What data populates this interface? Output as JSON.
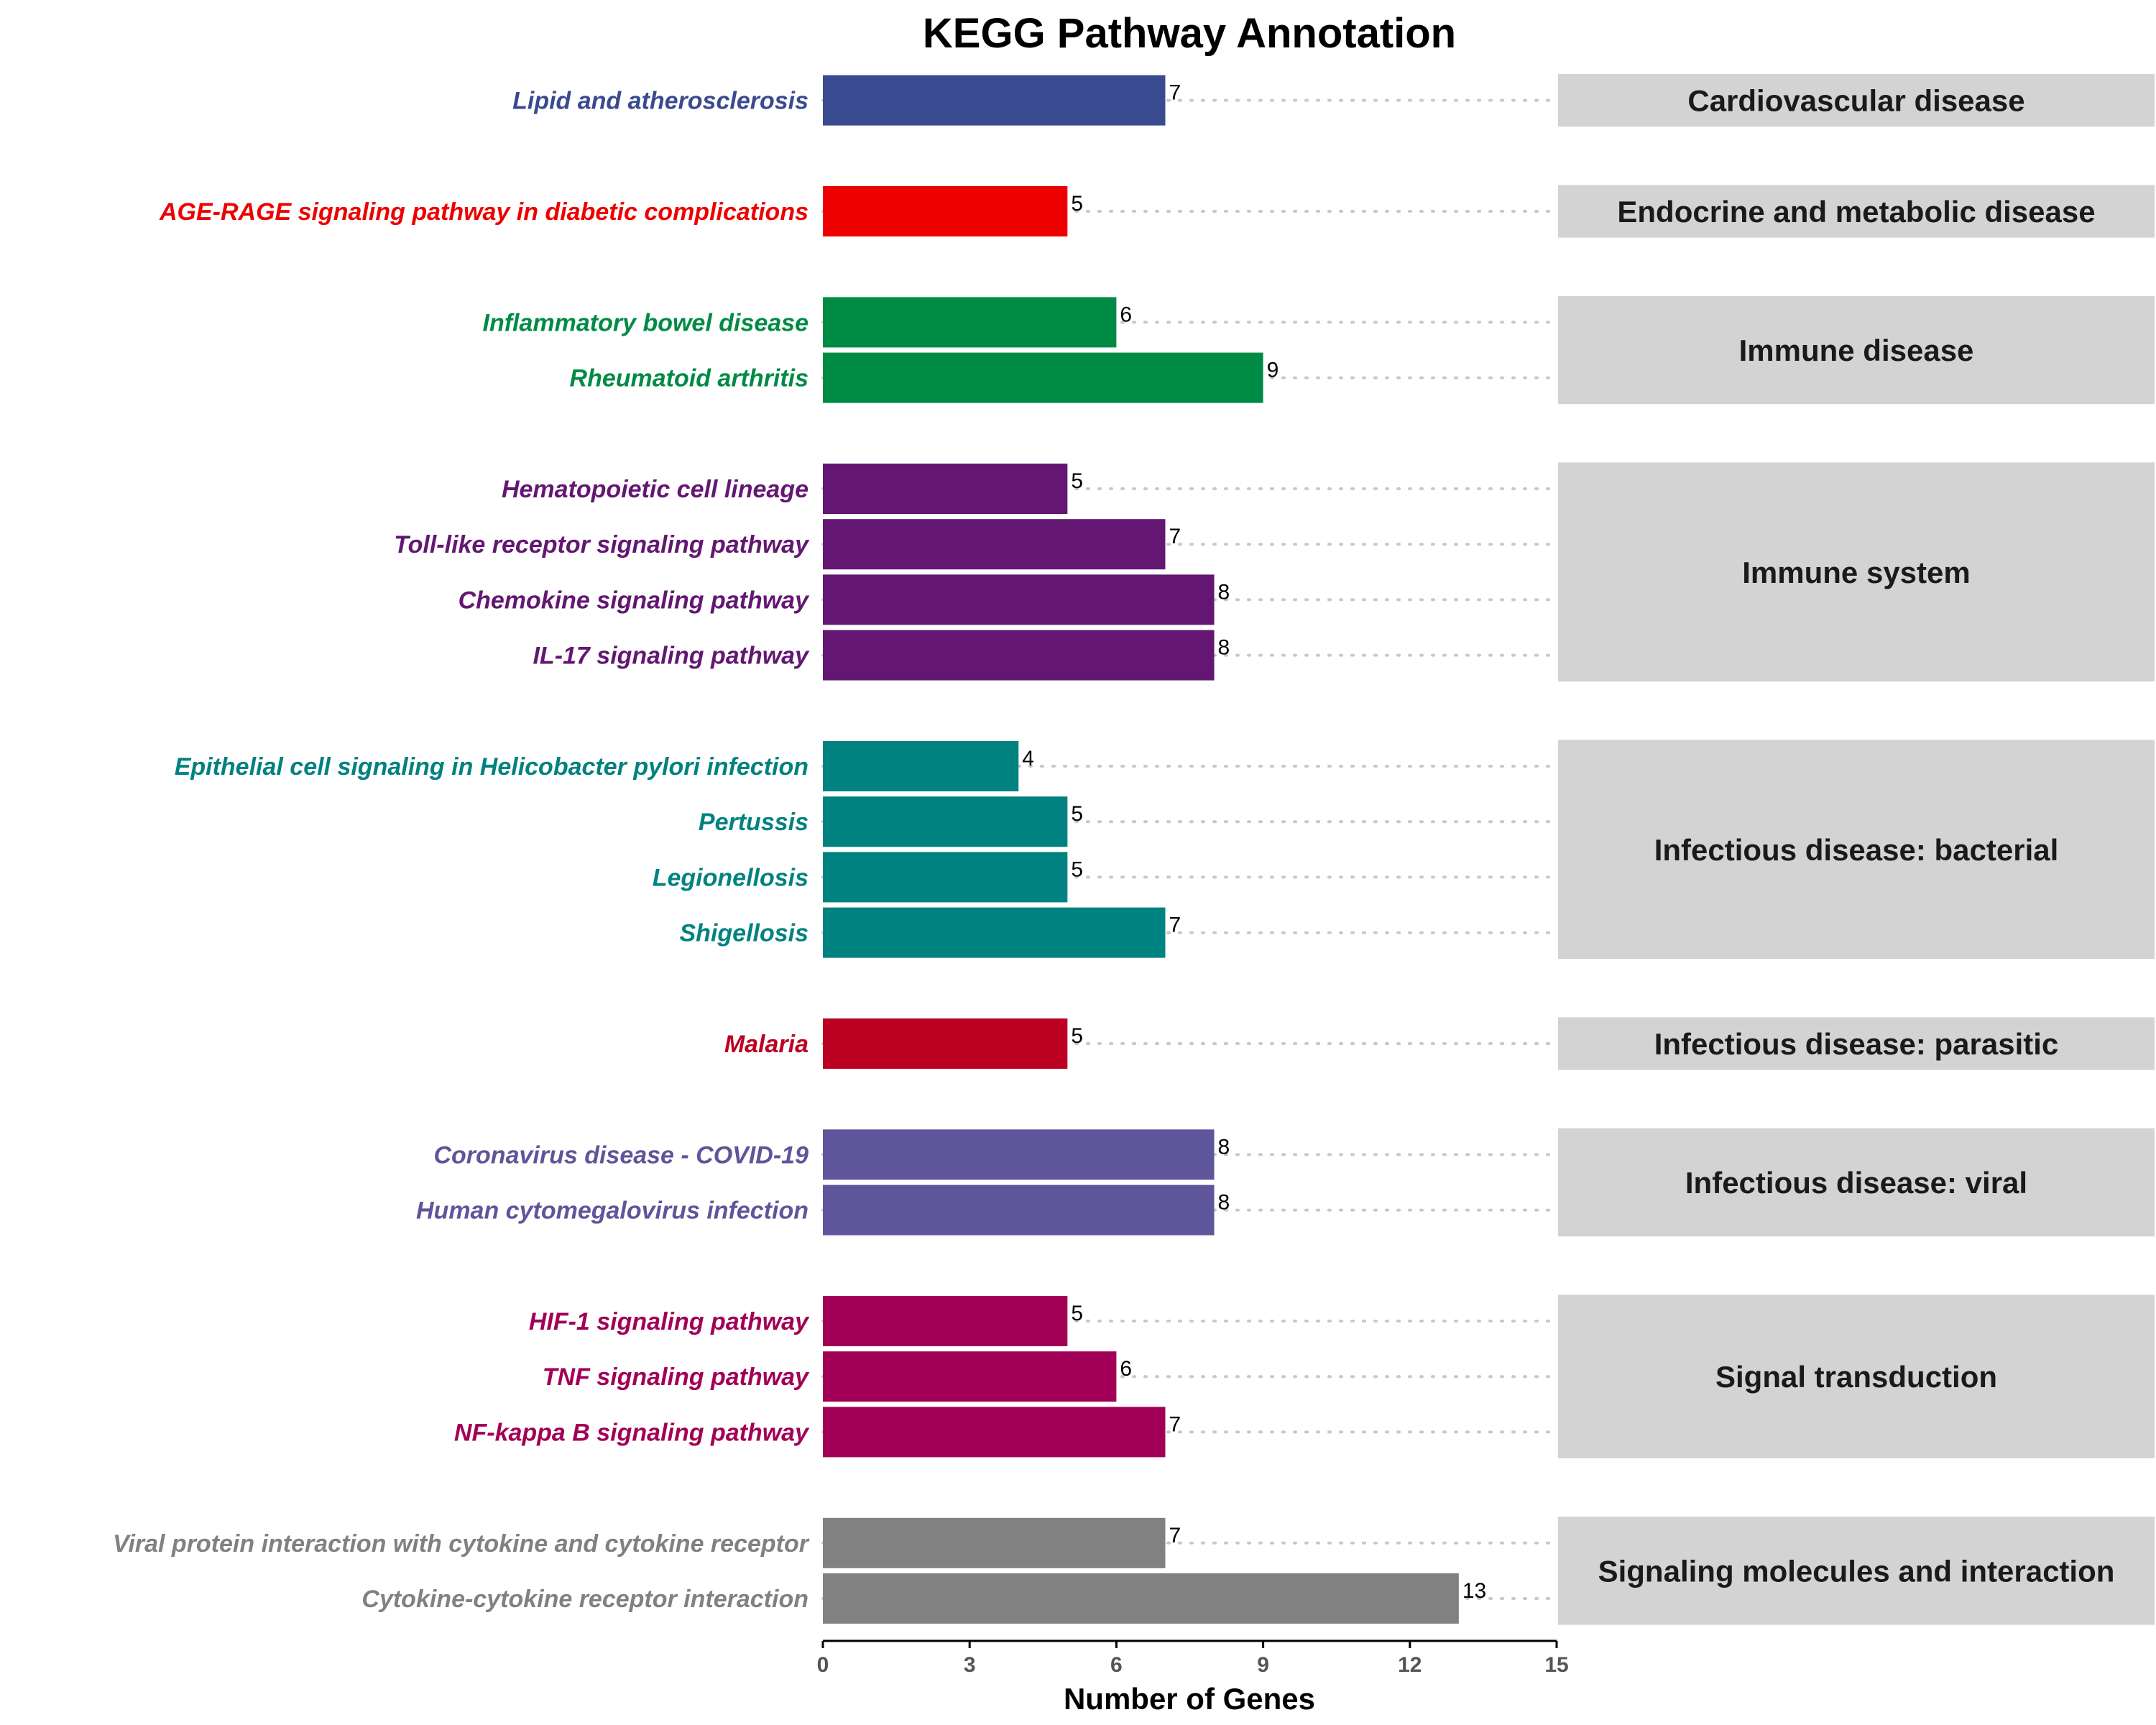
{
  "chart_data": {
    "type": "bar",
    "orientation": "horizontal",
    "title": "KEGG Pathway Annotation",
    "xlabel": "Number of Genes",
    "ylabel": "",
    "xlim": [
      0,
      15
    ],
    "xticks": [
      0,
      3,
      6,
      9,
      12,
      15
    ],
    "legend": "none",
    "grid": false,
    "groups": [
      {
        "category": "Cardiovascular disease",
        "color": "#3a4a90",
        "pathways": [
          {
            "name": "Lipid and atherosclerosis",
            "value": 7
          }
        ]
      },
      {
        "category": "Endocrine and metabolic disease",
        "color": "#ee0000",
        "pathways": [
          {
            "name": "AGE-RAGE signaling pathway in diabetic complications",
            "value": 5
          }
        ]
      },
      {
        "category": "Immune disease",
        "color": "#008b45",
        "pathways": [
          {
            "name": "Inflammatory bowel disease",
            "value": 6
          },
          {
            "name": "Rheumatoid arthritis",
            "value": 9
          }
        ]
      },
      {
        "category": "Immune system",
        "color": "#631772",
        "pathways": [
          {
            "name": "Hematopoietic cell lineage",
            "value": 5
          },
          {
            "name": "Toll-like receptor signaling pathway",
            "value": 7
          },
          {
            "name": "Chemokine signaling pathway",
            "value": 8
          },
          {
            "name": "IL-17 signaling pathway",
            "value": 8
          }
        ]
      },
      {
        "category": "Infectious disease: bacterial",
        "color": "#008280",
        "pathways": [
          {
            "name": "Epithelial cell signaling in Helicobacter pylori infection",
            "value": 4
          },
          {
            "name": "Pertussis",
            "value": 5
          },
          {
            "name": "Legionellosis",
            "value": 5
          },
          {
            "name": "Shigellosis",
            "value": 7
          }
        ]
      },
      {
        "category": "Infectious disease: parasitic",
        "color": "#bb0021",
        "pathways": [
          {
            "name": "Malaria",
            "value": 5
          }
        ]
      },
      {
        "category": "Infectious disease: viral",
        "color": "#5f559b",
        "pathways": [
          {
            "name": "Coronavirus disease - COVID-19",
            "value": 8
          },
          {
            "name": "Human cytomegalovirus infection",
            "value": 8
          }
        ]
      },
      {
        "category": "Signal transduction",
        "color": "#a20056",
        "pathways": [
          {
            "name": "HIF-1 signaling pathway",
            "value": 5
          },
          {
            "name": "TNF signaling pathway",
            "value": 6
          },
          {
            "name": "NF-kappa B signaling pathway",
            "value": 7
          }
        ]
      },
      {
        "category": "Signaling molecules and interaction",
        "color": "#808180",
        "pathways": [
          {
            "name": "Viral protein interaction with cytokine and cytokine receptor",
            "value": 7
          },
          {
            "name": "Cytokine-cytokine receptor interaction",
            "value": 13
          }
        ]
      }
    ]
  }
}
